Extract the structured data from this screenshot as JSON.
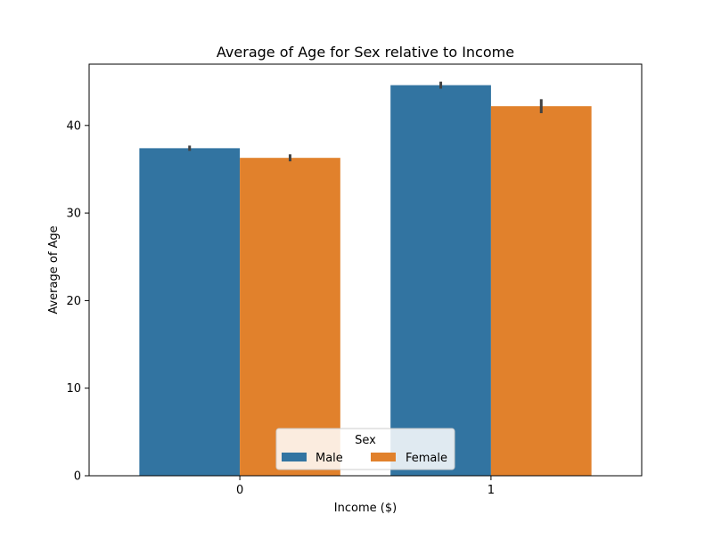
{
  "chart_data": {
    "type": "bar",
    "title": "Average of Age for Sex relative to Income",
    "xlabel": "Income ($)",
    "ylabel": "Average of Age",
    "categories": [
      "0",
      "1"
    ],
    "series": [
      {
        "name": "Male",
        "color": "#3274a1",
        "values": [
          37.4,
          44.6
        ],
        "error_low": [
          37.1,
          44.2
        ],
        "error_high": [
          37.7,
          45.0
        ]
      },
      {
        "name": "Female",
        "color": "#e1812c",
        "values": [
          36.3,
          42.2
        ],
        "error_low": [
          35.9,
          41.4
        ],
        "error_high": [
          36.7,
          43.0
        ]
      }
    ],
    "ylim": [
      0,
      47
    ],
    "yticks": [
      0,
      10,
      20,
      30,
      40
    ],
    "ytick_labels": [
      "0",
      "10",
      "20",
      "30",
      "40"
    ],
    "legend": {
      "title": "Sex",
      "placement": "lower-center"
    },
    "grid": false
  }
}
